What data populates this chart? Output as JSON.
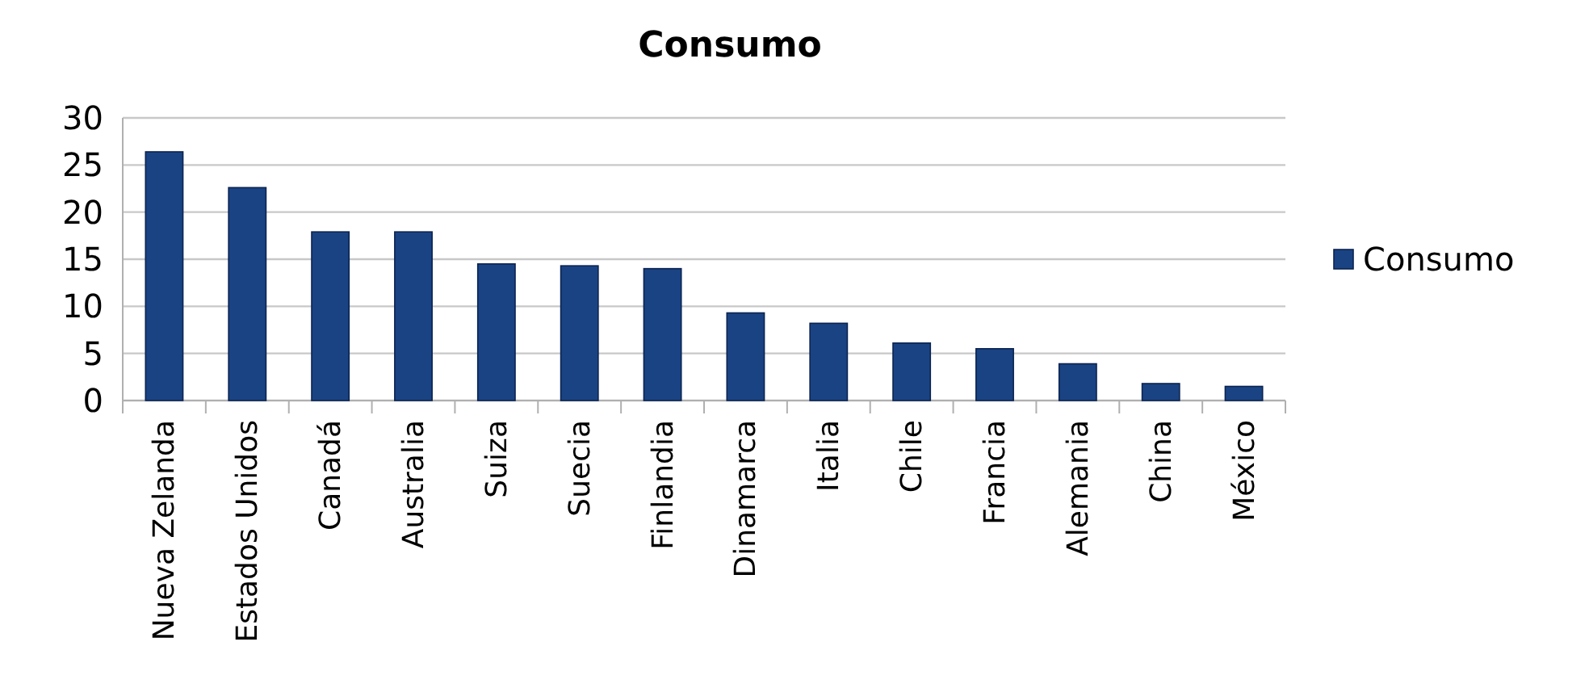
{
  "chart_data": {
    "type": "bar",
    "title": "Consumo",
    "categories": [
      "Nueva Zelanda",
      "Estados Unidos",
      "Canadá",
      "Australia",
      "Suiza",
      "Suecia",
      "Finlandia",
      "Dinamarca",
      "Italia",
      "Chile",
      "Francia",
      "Alemania",
      "China",
      "México"
    ],
    "series": [
      {
        "name": "Consumo",
        "color": "#1a4384",
        "values": [
          26.4,
          22.6,
          17.9,
          17.9,
          14.5,
          14.3,
          14.0,
          9.3,
          8.2,
          6.1,
          5.5,
          3.9,
          1.8,
          1.5
        ]
      }
    ],
    "ylim": [
      0,
      30
    ],
    "yticks": [
      0,
      5,
      10,
      15,
      20,
      25,
      30
    ],
    "grid": "y",
    "legend": "right"
  }
}
